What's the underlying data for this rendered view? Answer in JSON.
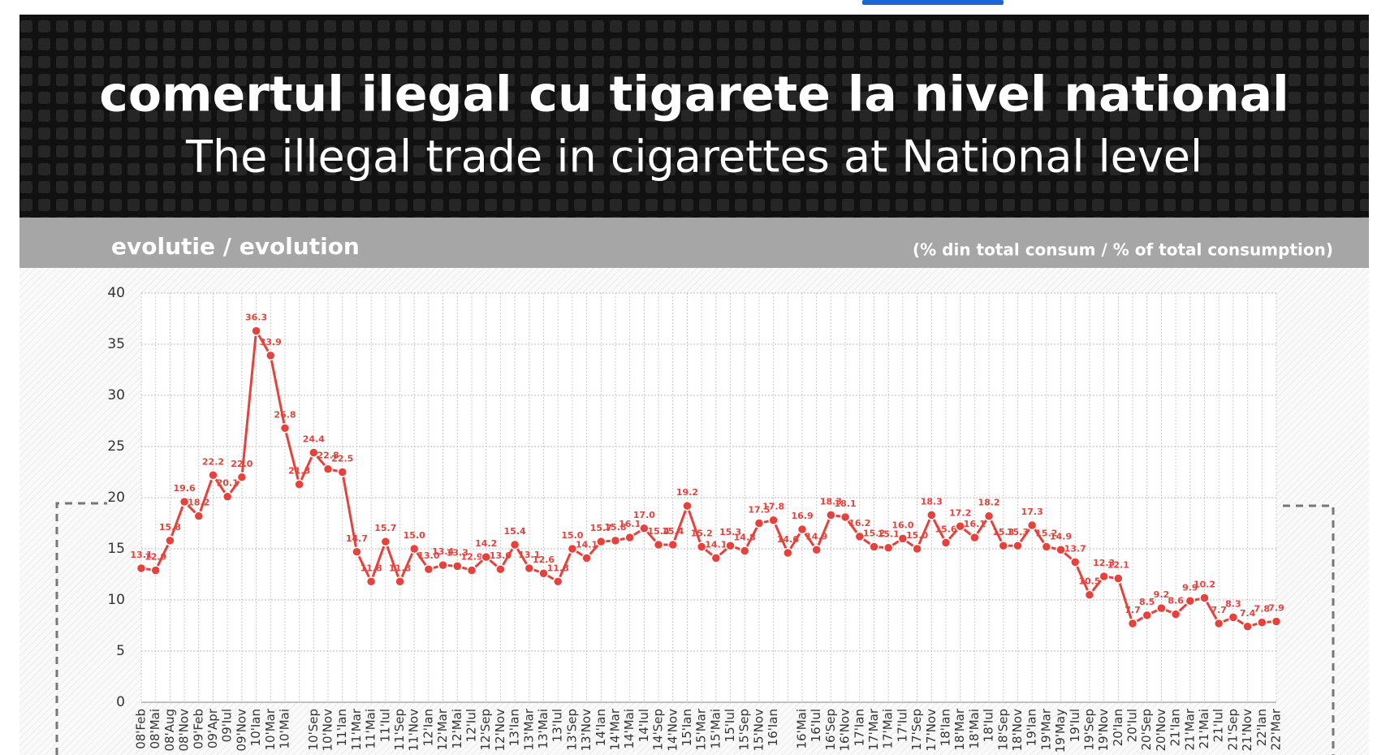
{
  "header": {
    "title": "comertul ilegal cu tigarete la nivel national",
    "subtitle": "The illegal trade in cigarettes at National level"
  },
  "chart_data": {
    "type": "line",
    "title": "evolutie / evolution",
    "subtitle": "(% din total consum / % of total consumption)",
    "categories": [
      "08'Feb",
      "08'Mai",
      "08'Aug",
      "08'Nov",
      "09'Feb",
      "09'Apr",
      "09'Iul",
      "09'Nov",
      "10'Ian",
      "10'Mar",
      "10'Mai",
      null,
      "10'Sep",
      "10'Nov",
      "11'Ian",
      "11'Mar",
      "11'Mai",
      "11'Iul",
      "11'Sep",
      "11'Nov",
      "12'Ian",
      "12'Mar",
      "12'Mai",
      "12'Iul",
      "12'Sep",
      "12'Nov",
      "13'Ian",
      "13'Mar",
      "13'Mai",
      "13'Iul",
      "13'Sep",
      "13'Nov",
      "14'Ian",
      "14'Mar",
      "14'Mai",
      "14'Iul",
      "14'Sep",
      "14'Nov",
      "15'Ian",
      "15'Mar",
      "15'Mai",
      "15'Iul",
      "15'Sep",
      "15'Nov",
      "16'Ian",
      null,
      "16'Mai",
      "16'Iul",
      "16'Sep",
      "16'Nov",
      "17'Ian",
      "17'Mar",
      "17'Mai",
      "17'Iul",
      "17'Sep",
      "17'Nov",
      "18'Ian",
      "18'Mar",
      "18'Mai",
      "18'Iul",
      "18'Sep",
      "18'Nov",
      "19'Ian",
      "19'Mar",
      "19'May",
      "19'Iul",
      "19'Sep",
      "19'Nov",
      "20'Ian",
      "20'Iul",
      "20'Sep",
      "20'Nov",
      "21'Ian",
      "21'Mar",
      "21'Mai",
      "21'Iul",
      "21'Sep",
      "21'Nov",
      "22'Ian",
      "22'Mar"
    ],
    "values": [
      13.1,
      12.9,
      15.8,
      19.6,
      18.2,
      22.2,
      20.1,
      22.0,
      36.3,
      33.9,
      26.8,
      21.3,
      24.4,
      22.8,
      22.5,
      14.7,
      11.8,
      15.7,
      11.8,
      15.0,
      13.0,
      13.4,
      13.3,
      12.9,
      14.2,
      13.0,
      15.4,
      13.1,
      12.6,
      11.8,
      15.0,
      14.1,
      15.7,
      15.8,
      16.1,
      17.0,
      15.4,
      15.4,
      19.2,
      15.2,
      14.1,
      15.3,
      14.8,
      17.5,
      17.8,
      14.6,
      16.9,
      14.9,
      18.3,
      18.1,
      16.2,
      15.2,
      15.1,
      16.0,
      15.0,
      18.3,
      15.6,
      17.2,
      16.1,
      18.2,
      15.3,
      15.3,
      17.3,
      15.2,
      14.9,
      13.7,
      10.5,
      12.3,
      12.1,
      7.7,
      8.5,
      9.2,
      8.6,
      9.9,
      10.2,
      7.7,
      8.3,
      7.4,
      7.8,
      7.9
    ],
    "value_labels": [
      "13.1",
      "12.9",
      "15.8",
      "19.6",
      "18.2",
      "22.2",
      "20.1",
      "22.0",
      "36.3",
      "33.9",
      "26.8",
      "21.3",
      "24.4",
      "22.8",
      "22.5",
      "14.7",
      "11.8",
      "15.7",
      "11.8",
      "15.0",
      "13.0",
      "13.4",
      "13.3",
      "12.9",
      "14.2",
      "13.0",
      "15.4",
      "13.1",
      "12.6",
      "11.8",
      "15.0",
      "14.1",
      "15.7",
      "15.8",
      "16.1",
      "17.0",
      "15.4",
      "15.4",
      "19.2",
      "15.2",
      "14.1",
      "15.3",
      "14.8",
      "17.5",
      "17.8",
      "14.6",
      "16.9",
      "14.9",
      "18.3",
      "18.1",
      "16.2",
      "15.2",
      "15.1",
      "16.0",
      "15.0",
      "18.3",
      "15.6",
      "17.2",
      "16.1",
      "18.2",
      "15.3",
      "15.3",
      "17.3",
      "15.2",
      "14.9",
      "13.7",
      "10.5",
      "12.3",
      "12.1",
      "7.7",
      "8.5",
      "9.2",
      "8.6",
      "9.9",
      "10.2",
      "7.7",
      "8.3",
      "7.4",
      "7.8",
      "7.9"
    ],
    "color": "#e8413c",
    "ylim": [
      0,
      40
    ],
    "yticks": [
      0,
      5,
      10,
      15,
      20,
      25,
      30,
      35,
      40
    ],
    "grid": true
  }
}
